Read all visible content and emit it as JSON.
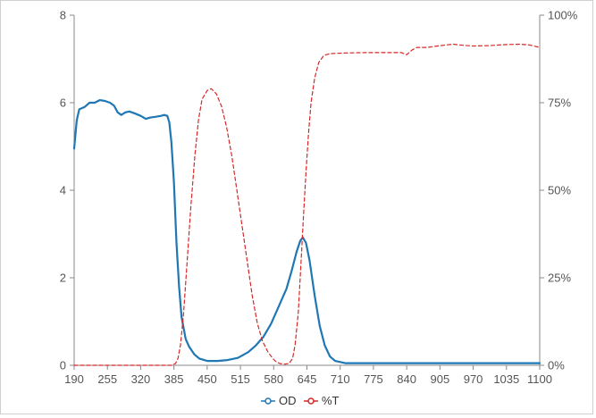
{
  "chart_data": {
    "type": "line",
    "title": "",
    "xlabel": "",
    "ylabel": "",
    "y2label": "",
    "xlim": [
      190,
      1100
    ],
    "ylim": [
      0,
      8
    ],
    "y2lim": [
      0,
      100
    ],
    "grid": false,
    "legend_position": "bottom-center",
    "x_ticks": [
      "190",
      "255",
      "320",
      "385",
      "450",
      "515",
      "580",
      "645",
      "710",
      "775",
      "840",
      "905",
      "970",
      "1035",
      "1100"
    ],
    "y_ticks": [
      "0",
      "2",
      "4",
      "6",
      "8"
    ],
    "y2_ticks": [
      "0%",
      "25%",
      "50%",
      "75%",
      "100%"
    ],
    "series": [
      {
        "name": "OD",
        "axis": "left",
        "color": "#1f77b4",
        "style": "solid",
        "points": [
          [
            190,
            4.95
          ],
          [
            195,
            5.6
          ],
          [
            200,
            5.85
          ],
          [
            210,
            5.9
          ],
          [
            220,
            6.0
          ],
          [
            230,
            6.0
          ],
          [
            240,
            6.06
          ],
          [
            250,
            6.04
          ],
          [
            260,
            6.0
          ],
          [
            268,
            5.93
          ],
          [
            275,
            5.78
          ],
          [
            282,
            5.72
          ],
          [
            290,
            5.78
          ],
          [
            298,
            5.8
          ],
          [
            310,
            5.75
          ],
          [
            320,
            5.7
          ],
          [
            330,
            5.63
          ],
          [
            338,
            5.66
          ],
          [
            350,
            5.68
          ],
          [
            360,
            5.7
          ],
          [
            366,
            5.72
          ],
          [
            372,
            5.7
          ],
          [
            376,
            5.55
          ],
          [
            380,
            5.1
          ],
          [
            385,
            4.2
          ],
          [
            390,
            2.8
          ],
          [
            395,
            1.8
          ],
          [
            400,
            1.1
          ],
          [
            408,
            0.6
          ],
          [
            415,
            0.42
          ],
          [
            425,
            0.25
          ],
          [
            435,
            0.15
          ],
          [
            450,
            0.1
          ],
          [
            470,
            0.1
          ],
          [
            490,
            0.12
          ],
          [
            510,
            0.17
          ],
          [
            530,
            0.3
          ],
          [
            545,
            0.45
          ],
          [
            560,
            0.65
          ],
          [
            575,
            0.95
          ],
          [
            590,
            1.35
          ],
          [
            605,
            1.75
          ],
          [
            615,
            2.15
          ],
          [
            625,
            2.6
          ],
          [
            632,
            2.85
          ],
          [
            637,
            2.92
          ],
          [
            643,
            2.8
          ],
          [
            650,
            2.4
          ],
          [
            660,
            1.6
          ],
          [
            670,
            0.9
          ],
          [
            680,
            0.45
          ],
          [
            690,
            0.2
          ],
          [
            700,
            0.1
          ],
          [
            720,
            0.05
          ],
          [
            800,
            0.05
          ],
          [
            900,
            0.05
          ],
          [
            1000,
            0.05
          ],
          [
            1100,
            0.05
          ]
        ]
      },
      {
        "name": "%T",
        "axis": "right",
        "color": "#d62728",
        "style": "dashed",
        "points": [
          [
            190,
            0
          ],
          [
            380,
            0
          ],
          [
            388,
            0.5
          ],
          [
            393,
            2
          ],
          [
            398,
            6
          ],
          [
            404,
            15
          ],
          [
            410,
            28
          ],
          [
            418,
            45
          ],
          [
            426,
            60
          ],
          [
            433,
            70
          ],
          [
            440,
            76
          ],
          [
            450,
            78.5
          ],
          [
            458,
            79
          ],
          [
            468,
            77.5
          ],
          [
            478,
            74
          ],
          [
            488,
            68
          ],
          [
            498,
            60
          ],
          [
            508,
            50
          ],
          [
            518,
            40
          ],
          [
            528,
            30
          ],
          [
            538,
            20
          ],
          [
            548,
            12
          ],
          [
            558,
            7
          ],
          [
            568,
            4
          ],
          [
            578,
            2
          ],
          [
            585,
            1
          ],
          [
            592,
            0.5
          ],
          [
            600,
            0.3
          ],
          [
            610,
            0.5
          ],
          [
            617,
            2
          ],
          [
            622,
            6
          ],
          [
            628,
            15
          ],
          [
            633,
            28
          ],
          [
            638,
            42
          ],
          [
            643,
            55
          ],
          [
            648,
            66
          ],
          [
            653,
            75
          ],
          [
            660,
            82
          ],
          [
            668,
            86.5
          ],
          [
            678,
            88.5
          ],
          [
            690,
            89
          ],
          [
            720,
            89.2
          ],
          [
            760,
            89.3
          ],
          [
            800,
            89.3
          ],
          [
            830,
            89.3
          ],
          [
            840,
            88.7
          ],
          [
            850,
            90
          ],
          [
            860,
            90.8
          ],
          [
            880,
            90.8
          ],
          [
            900,
            91.2
          ],
          [
            930,
            91.7
          ],
          [
            950,
            91.4
          ],
          [
            970,
            91.2
          ],
          [
            1000,
            91.3
          ],
          [
            1035,
            91.6
          ],
          [
            1060,
            91.7
          ],
          [
            1080,
            91.5
          ],
          [
            1100,
            90.8
          ]
        ]
      }
    ]
  }
}
